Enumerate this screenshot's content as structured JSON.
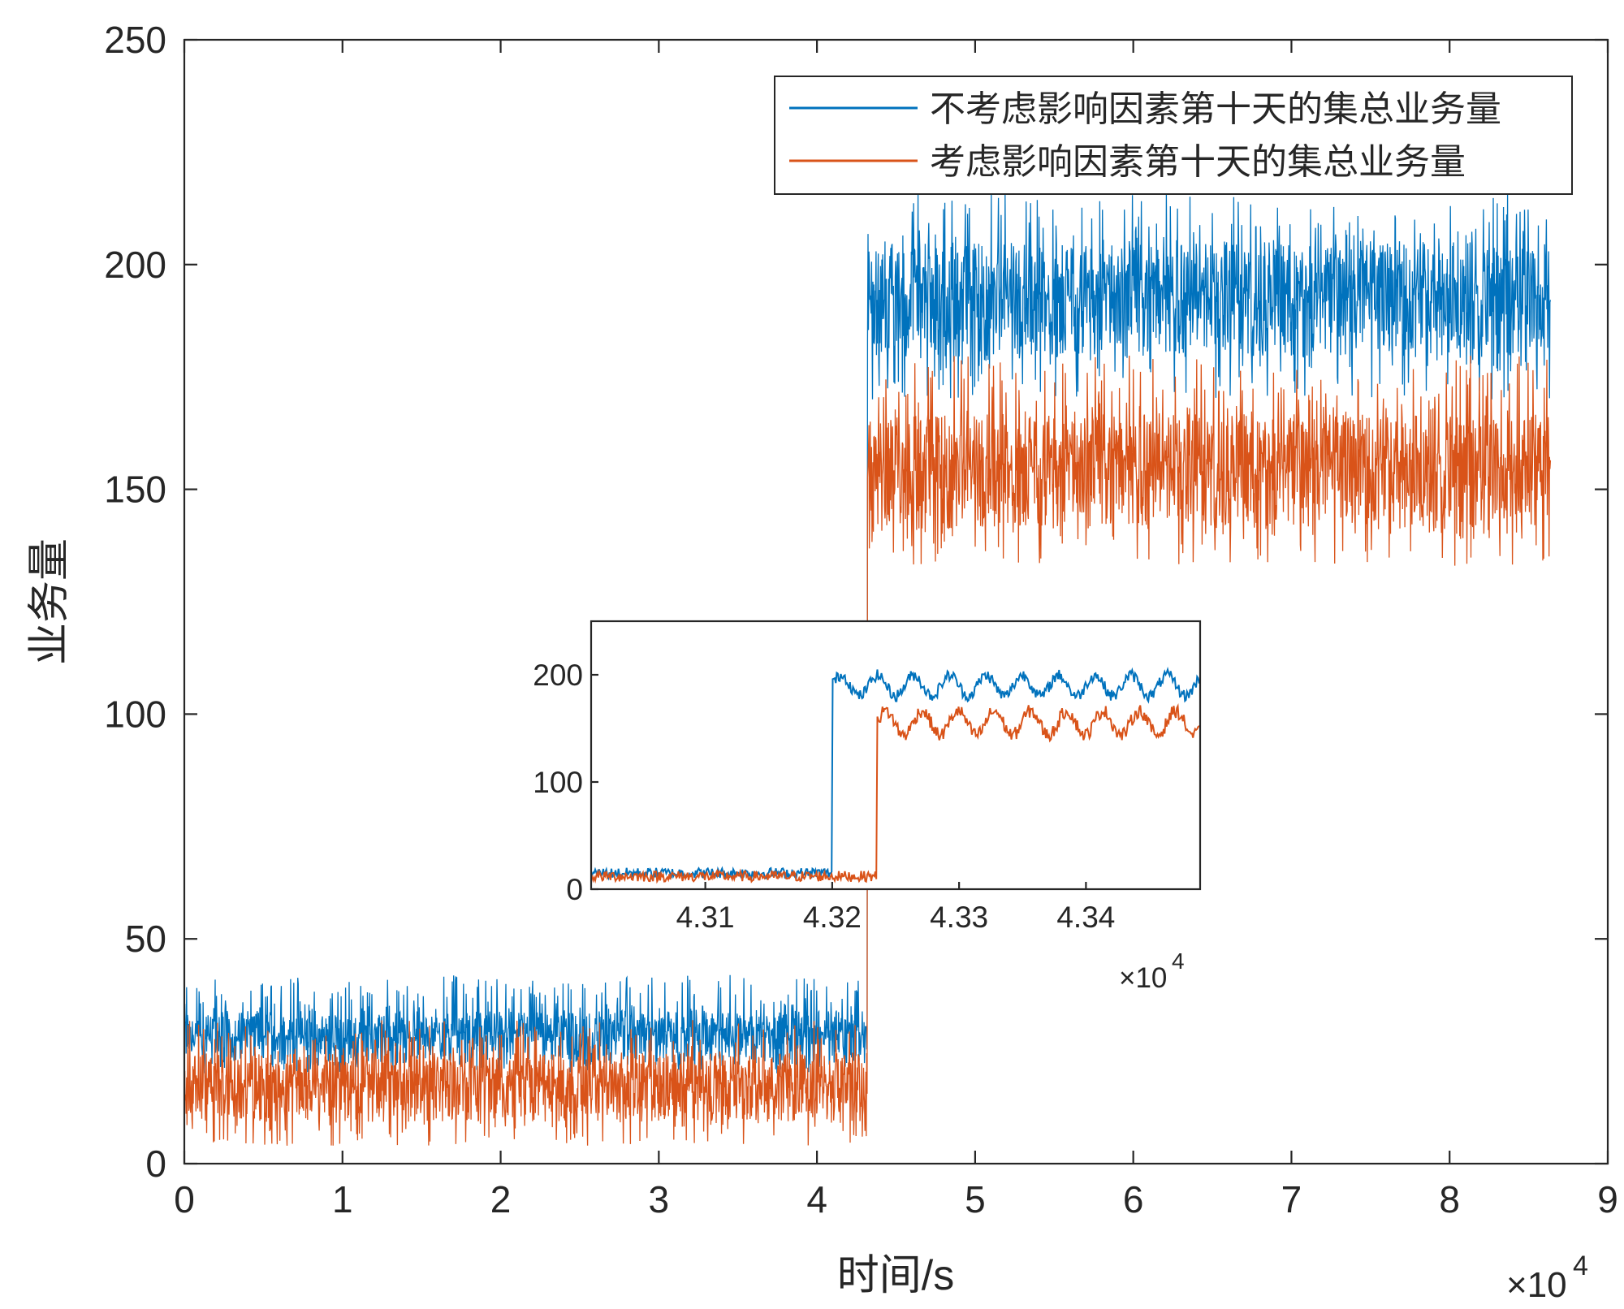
{
  "chart_data": {
    "type": "line",
    "main": {
      "xlabel": "时间/s",
      "ylabel": "业务量",
      "x_exponent_label": "×10",
      "x_exponent_power": "4",
      "xlim": [
        0,
        9
      ],
      "ylim": [
        0,
        250
      ],
      "xticks": [
        0,
        1,
        2,
        3,
        4,
        5,
        6,
        7,
        8,
        9
      ],
      "yticks": [
        0,
        50,
        100,
        150,
        200,
        250
      ],
      "x_unit_multiplier": 10000,
      "legend_position": "top-right",
      "series": [
        {
          "name": "不考虑影响因素第十天的集总业务量",
          "color": "#0072BD",
          "segments": [
            {
              "x_start": 0,
              "x_end": 4.32,
              "center": 28,
              "low": 20,
              "high": 42
            },
            {
              "x_start": 4.32,
              "x_end": 8.64,
              "center": 192,
              "low": 170,
              "high": 216
            }
          ]
        },
        {
          "name": "考虑影响因素第十天的集总业务量",
          "color": "#D95319",
          "initial_spike": 180,
          "segments": [
            {
              "x_start": 0,
              "x_end": 4.32,
              "center": 17,
              "low": 4,
              "high": 32
            },
            {
              "x_start": 4.32,
              "x_end": 8.64,
              "center": 154,
              "low": 133,
              "high": 180
            }
          ]
        }
      ]
    },
    "inset": {
      "xlim": [
        4.301,
        4.349
      ],
      "ylim": [
        0,
        250
      ],
      "xticks": [
        "4.31",
        "4.32",
        "4.33",
        "4.34"
      ],
      "yticks": [
        "0",
        "100",
        "200"
      ],
      "x_exponent_label": "×10",
      "x_exponent_power": "4",
      "series": [
        {
          "color": "#0072BD",
          "low_level": 15,
          "step_at": 4.32,
          "high_center": 190,
          "high_amplitude": 12
        },
        {
          "color": "#D95319",
          "low_level": 12,
          "step_at": 4.3235,
          "high_center": 155,
          "high_amplitude": 14
        }
      ]
    }
  }
}
